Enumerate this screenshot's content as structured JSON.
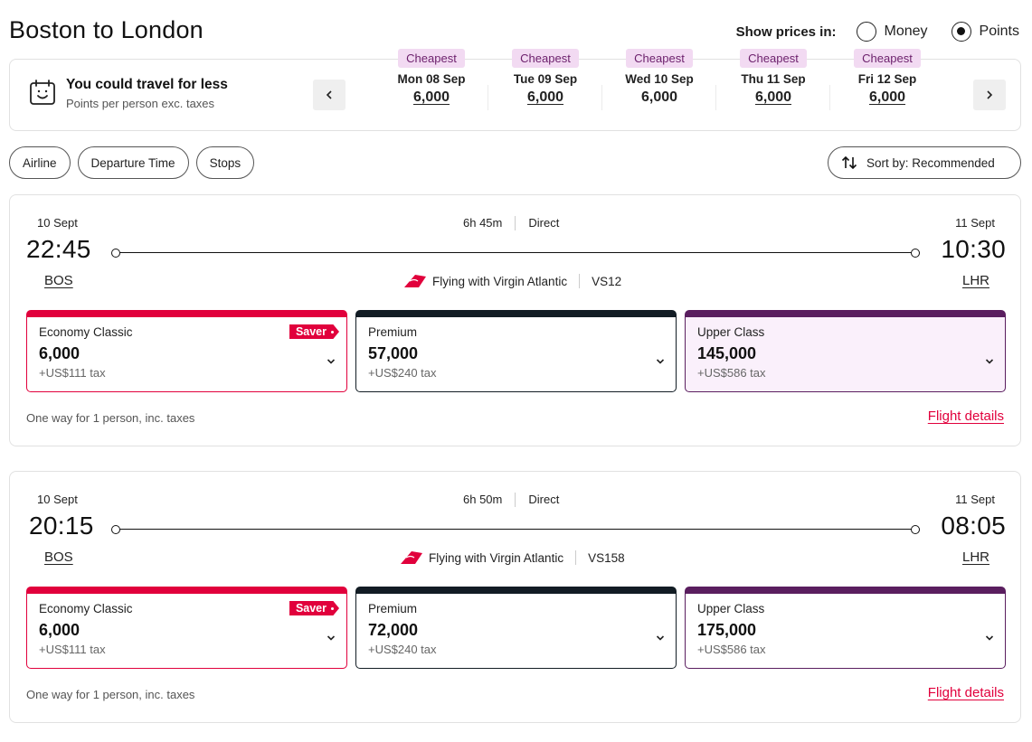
{
  "header": {
    "title": "Boston to London",
    "price_label": "Show prices in:",
    "options": [
      {
        "label": "Money",
        "selected": false
      },
      {
        "label": "Points",
        "selected": true
      }
    ]
  },
  "date_strip": {
    "title": "You could travel for less",
    "subtitle": "Points per person exc. taxes",
    "prev_icon": "chevron-left-icon",
    "next_icon": "chevron-right-icon",
    "days": [
      {
        "tag": "Cheapest",
        "label": "Mon 08 Sep",
        "price": "6,000",
        "selected": false
      },
      {
        "tag": "Cheapest",
        "label": "Tue 09 Sep",
        "price": "6,000",
        "selected": false
      },
      {
        "tag": "Cheapest",
        "label": "Wed 10 Sep",
        "price": "6,000",
        "selected": true
      },
      {
        "tag": "Cheapest",
        "label": "Thu 11 Sep",
        "price": "6,000",
        "selected": false
      },
      {
        "tag": "Cheapest",
        "label": "Fri 12 Sep",
        "price": "6,000",
        "selected": false
      }
    ]
  },
  "filters": [
    "Airline",
    "Departure Time",
    "Stops"
  ],
  "sort_label": "Sort by: Recommended",
  "flights": [
    {
      "dep_date": "10 Sept",
      "arr_date": "11 Sept",
      "duration": "6h 45m",
      "stops": "Direct",
      "dep_time": "22:45",
      "arr_time": "10:30",
      "dep_code": "BOS",
      "arr_code": "LHR",
      "airline": "Flying with Virgin Atlantic",
      "flight_no": "VS12",
      "fares": [
        {
          "name": "Economy Classic",
          "points": "6,000",
          "tax": "+US$111 tax",
          "badge": "Saver"
        },
        {
          "name": "Premium",
          "points": "57,000",
          "tax": "+US$240 tax",
          "badge": ""
        },
        {
          "name": "Upper Class",
          "points": "145,000",
          "tax": "+US$586 tax",
          "badge": ""
        }
      ],
      "note": "One way for 1 person, inc. taxes",
      "details_label": "Flight details"
    },
    {
      "dep_date": "10 Sept",
      "arr_date": "11 Sept",
      "duration": "6h 50m",
      "stops": "Direct",
      "dep_time": "20:15",
      "arr_time": "08:05",
      "dep_code": "BOS",
      "arr_code": "LHR",
      "airline": "Flying with Virgin Atlantic",
      "flight_no": "VS158",
      "fares": [
        {
          "name": "Economy Classic",
          "points": "6,000",
          "tax": "+US$111 tax",
          "badge": "Saver"
        },
        {
          "name": "Premium",
          "points": "72,000",
          "tax": "+US$240 tax",
          "badge": ""
        },
        {
          "name": "Upper Class",
          "points": "175,000",
          "tax": "+US$586 tax",
          "badge": ""
        }
      ],
      "note": "One way for 1 person, inc. taxes",
      "details_label": "Flight details"
    }
  ],
  "colors": {
    "accent": "#e1003c",
    "premium": "#121c24",
    "upper": "#5a1e5f",
    "cheapest_tag_bg": "#f2daf2"
  }
}
